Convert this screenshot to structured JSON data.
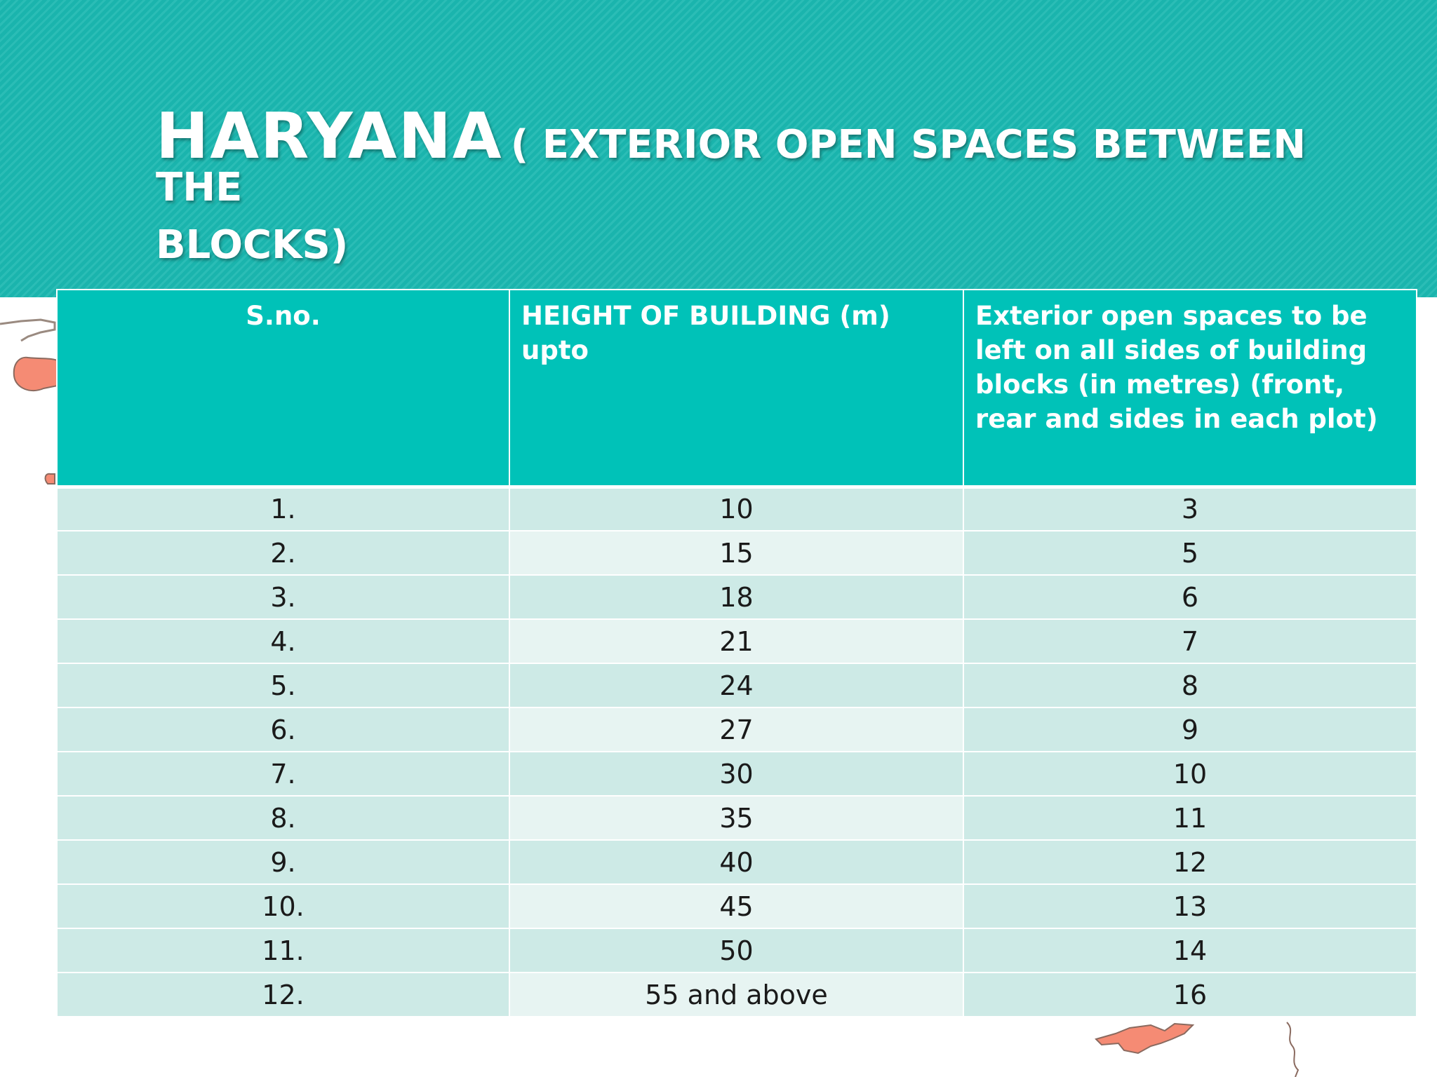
{
  "slide": {
    "title_main": "HARYANA",
    "title_sub_line1": "( EXTERIOR OPEN SPACES BETWEEN THE",
    "title_sub_line2": "BLOCKS)"
  },
  "table": {
    "headers": [
      "S.no.",
      "HEIGHT OF BUILDING (m) upto",
      "Exterior open spaces to be left on all sides of building blocks (in metres) (front, rear and sides in each plot)"
    ],
    "rows": [
      [
        "1.",
        "10",
        "3"
      ],
      [
        "2.",
        "15",
        "5"
      ],
      [
        "3.",
        "18",
        "6"
      ],
      [
        "4.",
        "21",
        "7"
      ],
      [
        "5.",
        "24",
        "8"
      ],
      [
        "6.",
        "27",
        "9"
      ],
      [
        "7.",
        "30",
        "10"
      ],
      [
        "8.",
        "35",
        "11"
      ],
      [
        "9.",
        "40",
        "12"
      ],
      [
        "10.",
        "45",
        "13"
      ],
      [
        "11.",
        "50",
        "14"
      ],
      [
        "12.",
        "55 and above",
        "16"
      ]
    ]
  },
  "colors": {
    "header_band": "#1bb8b0",
    "table_header": "#00c2b8",
    "row_band": "#cdeae6",
    "row_band_light": "#e7f4f2",
    "map_accent": "#f58b74"
  }
}
